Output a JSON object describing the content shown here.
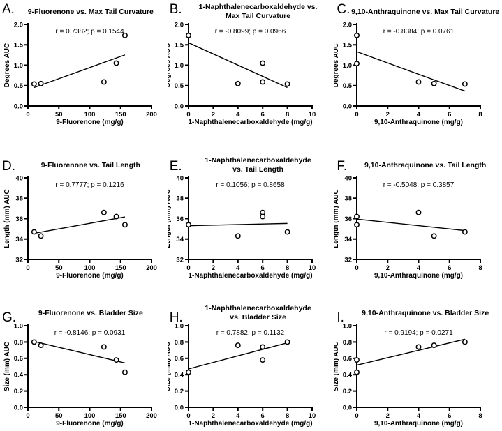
{
  "figure": {
    "background": "#ffffff",
    "ink": "#000000",
    "marker": {
      "shape": "open-circle",
      "fill": "#ffffff",
      "stroke": "#000000"
    },
    "grid_layout": "3x3"
  },
  "chart_data": [
    {
      "type": "scatter",
      "panel_letter": "A.",
      "title": "9-Fluorenone vs. Max Tail Curvature",
      "stats": "r = 0.7382; p = 0.1544",
      "xlabel": "9-Fluorenone (mg/g)",
      "ylabel": "Degrees AUC",
      "xlim": [
        0,
        200
      ],
      "ylim": [
        0,
        2
      ],
      "xticks": [
        {
          "v": 0,
          "label": "0"
        },
        {
          "v": 50,
          "label": "50"
        },
        {
          "v": 100,
          "label": "100"
        },
        {
          "v": 150,
          "label": "150"
        },
        {
          "v": 200,
          "label": "200"
        }
      ],
      "yticks": [
        {
          "v": 0,
          "label": "0.0"
        },
        {
          "v": 0.5,
          "label": "0.5"
        },
        {
          "v": 1,
          "label": "1.0"
        },
        {
          "v": 1.5,
          "label": "1.5"
        },
        {
          "v": 2,
          "label": "2.0"
        }
      ],
      "points": [
        [
          10,
          0.54
        ],
        [
          21,
          0.55
        ],
        [
          123,
          0.59
        ],
        [
          143,
          1.05
        ],
        [
          157,
          1.73
        ]
      ],
      "fit_line": true,
      "legend": "none",
      "gridlines": false
    },
    {
      "type": "scatter",
      "panel_letter": "B.",
      "title": "1-Naphthalenecarboxaldehyde vs.\nMax Tail Curvature",
      "stats": "r = -0.8099; p = 0.0966",
      "xlabel": "1-Naphthalenecarboxaldehyde (mg/g)",
      "ylabel": "Degrees AUC",
      "xlim": [
        0,
        10
      ],
      "ylim": [
        0,
        2
      ],
      "xticks": [
        {
          "v": 0,
          "label": "0"
        },
        {
          "v": 2,
          "label": "2"
        },
        {
          "v": 4,
          "label": "4"
        },
        {
          "v": 6,
          "label": "6"
        },
        {
          "v": 8,
          "label": "8"
        },
        {
          "v": 10,
          "label": "10"
        }
      ],
      "yticks": [
        {
          "v": 0,
          "label": "0.0"
        },
        {
          "v": 0.5,
          "label": "0.5"
        },
        {
          "v": 1,
          "label": "1.0"
        },
        {
          "v": 1.5,
          "label": "1.5"
        },
        {
          "v": 2,
          "label": "2.0"
        }
      ],
      "points": [
        [
          0,
          1.73
        ],
        [
          4,
          0.55
        ],
        [
          6,
          1.05
        ],
        [
          6,
          0.59
        ],
        [
          8,
          0.54
        ]
      ],
      "fit_line": true,
      "legend": "none",
      "gridlines": false
    },
    {
      "type": "scatter",
      "panel_letter": "C.",
      "title": "9,10-Anthraquinone vs. Max Tail Curvature",
      "stats": "r = -0.8384; p = 0.0761",
      "xlabel": "9,10-Anthraquinone (mg/g)",
      "ylabel": "Degrees AUC",
      "xlim": [
        0,
        8
      ],
      "ylim": [
        0,
        2
      ],
      "xticks": [
        {
          "v": 0,
          "label": "0"
        },
        {
          "v": 2,
          "label": "2"
        },
        {
          "v": 4,
          "label": "4"
        },
        {
          "v": 6,
          "label": "6"
        },
        {
          "v": 8,
          "label": "8"
        }
      ],
      "yticks": [
        {
          "v": 0,
          "label": "0.0"
        },
        {
          "v": 0.5,
          "label": "0.5"
        },
        {
          "v": 1,
          "label": "1.0"
        },
        {
          "v": 1.5,
          "label": "1.5"
        },
        {
          "v": 2,
          "label": "2.0"
        }
      ],
      "points": [
        [
          0,
          1.73
        ],
        [
          0,
          1.04
        ],
        [
          4,
          0.59
        ],
        [
          5,
          0.55
        ],
        [
          7,
          0.54
        ]
      ],
      "fit_line": true,
      "legend": "none",
      "gridlines": false
    },
    {
      "type": "scatter",
      "panel_letter": "D.",
      "title": "9-Fluorenone vs. Tail Length",
      "stats": "r = 0.7777; p = 0.1216",
      "xlabel": "9-Fluorenone (mg/g)",
      "ylabel": "Length (mm) AUC",
      "xlim": [
        0,
        200
      ],
      "ylim": [
        32,
        40
      ],
      "xticks": [
        {
          "v": 0,
          "label": "0"
        },
        {
          "v": 50,
          "label": "50"
        },
        {
          "v": 100,
          "label": "100"
        },
        {
          "v": 150,
          "label": "150"
        },
        {
          "v": 200,
          "label": "200"
        }
      ],
      "yticks": [
        {
          "v": 32,
          "label": "32"
        },
        {
          "v": 34,
          "label": "34"
        },
        {
          "v": 36,
          "label": "36"
        },
        {
          "v": 38,
          "label": "38"
        },
        {
          "v": 40,
          "label": "40"
        }
      ],
      "points": [
        [
          10,
          34.7
        ],
        [
          21,
          34.3
        ],
        [
          123,
          36.6
        ],
        [
          143,
          36.2
        ],
        [
          157,
          35.4
        ]
      ],
      "fit_line": true,
      "legend": "none",
      "gridlines": false
    },
    {
      "type": "scatter",
      "panel_letter": "E.",
      "title": "1-Naphthalenecarboxaldehyde\nvs. Tail Length",
      "stats": "r = 0.1056; p = 0.8658",
      "xlabel": "1-Naphthalenecarboxaldehyde (mg/g)",
      "ylabel": "Length (mm) AUC",
      "xlim": [
        0,
        10
      ],
      "ylim": [
        32,
        40
      ],
      "xticks": [
        {
          "v": 0,
          "label": "0"
        },
        {
          "v": 2,
          "label": "2"
        },
        {
          "v": 4,
          "label": "4"
        },
        {
          "v": 6,
          "label": "6"
        },
        {
          "v": 8,
          "label": "8"
        },
        {
          "v": 10,
          "label": "10"
        }
      ],
      "yticks": [
        {
          "v": 32,
          "label": "32"
        },
        {
          "v": 34,
          "label": "34"
        },
        {
          "v": 36,
          "label": "36"
        },
        {
          "v": 38,
          "label": "38"
        },
        {
          "v": 40,
          "label": "40"
        }
      ],
      "points": [
        [
          0,
          35.4
        ],
        [
          4,
          34.3
        ],
        [
          6,
          36.6
        ],
        [
          6,
          36.2
        ],
        [
          8,
          34.7
        ]
      ],
      "fit_line": true,
      "legend": "none",
      "gridlines": false
    },
    {
      "type": "scatter",
      "panel_letter": "F.",
      "title": "9,10-Anthraquinone vs. Tail Length",
      "stats": "r = -0.5048; p = 0.3857",
      "xlabel": "9,10-Anthraquinone (mg/g)",
      "ylabel": "Length (mm) AUC",
      "xlim": [
        0,
        8
      ],
      "ylim": [
        32,
        40
      ],
      "xticks": [
        {
          "v": 0,
          "label": "0"
        },
        {
          "v": 2,
          "label": "2"
        },
        {
          "v": 4,
          "label": "4"
        },
        {
          "v": 6,
          "label": "6"
        },
        {
          "v": 8,
          "label": "8"
        }
      ],
      "yticks": [
        {
          "v": 32,
          "label": "32"
        },
        {
          "v": 34,
          "label": "34"
        },
        {
          "v": 36,
          "label": "36"
        },
        {
          "v": 38,
          "label": "38"
        },
        {
          "v": 40,
          "label": "40"
        }
      ],
      "points": [
        [
          0,
          36.2
        ],
        [
          0,
          35.4
        ],
        [
          4,
          36.6
        ],
        [
          5,
          34.3
        ],
        [
          7,
          34.7
        ]
      ],
      "fit_line": true,
      "legend": "none",
      "gridlines": false
    },
    {
      "type": "scatter",
      "panel_letter": "G.",
      "title": "9-Fluorenone vs. Bladder Size",
      "stats": "r = -0.8146; p = 0.0931",
      "xlabel": "9-Fluorenone (mg/g)",
      "ylabel": "Size (mm) AUC",
      "xlim": [
        0,
        200
      ],
      "ylim": [
        0,
        1
      ],
      "xticks": [
        {
          "v": 0,
          "label": "0"
        },
        {
          "v": 50,
          "label": "50"
        },
        {
          "v": 100,
          "label": "100"
        },
        {
          "v": 150,
          "label": "150"
        },
        {
          "v": 200,
          "label": "200"
        }
      ],
      "yticks": [
        {
          "v": 0,
          "label": "0.0"
        },
        {
          "v": 0.2,
          "label": "0.2"
        },
        {
          "v": 0.4,
          "label": "0.4"
        },
        {
          "v": 0.6,
          "label": "0.6"
        },
        {
          "v": 0.8,
          "label": "0.8"
        },
        {
          "v": 1,
          "label": "1.0"
        }
      ],
      "points": [
        [
          10,
          0.8
        ],
        [
          21,
          0.76
        ],
        [
          123,
          0.74
        ],
        [
          143,
          0.58
        ],
        [
          157,
          0.43
        ]
      ],
      "fit_line": true,
      "legend": "none",
      "gridlines": false
    },
    {
      "type": "scatter",
      "panel_letter": "H.",
      "title": "1-Naphthalenecarboxaldehyde\nvs. Bladder Size",
      "stats": "r = 0.7882; p = 0.1132",
      "xlabel": "1-Naphthalenecarboxaldehyde (mg/g)",
      "ylabel": "Size (mm) AUC",
      "xlim": [
        0,
        10
      ],
      "ylim": [
        0,
        1
      ],
      "xticks": [
        {
          "v": 0,
          "label": "0"
        },
        {
          "v": 2,
          "label": "2"
        },
        {
          "v": 4,
          "label": "4"
        },
        {
          "v": 6,
          "label": "6"
        },
        {
          "v": 8,
          "label": "8"
        },
        {
          "v": 10,
          "label": "10"
        }
      ],
      "yticks": [
        {
          "v": 0,
          "label": "0.0"
        },
        {
          "v": 0.2,
          "label": "0.2"
        },
        {
          "v": 0.4,
          "label": "0.4"
        },
        {
          "v": 0.6,
          "label": "0.6"
        },
        {
          "v": 0.8,
          "label": "0.8"
        },
        {
          "v": 1,
          "label": "1.0"
        }
      ],
      "points": [
        [
          0,
          0.43
        ],
        [
          4,
          0.76
        ],
        [
          6,
          0.74
        ],
        [
          6,
          0.58
        ],
        [
          8,
          0.8
        ]
      ],
      "fit_line": true,
      "legend": "none",
      "gridlines": false
    },
    {
      "type": "scatter",
      "panel_letter": "I.",
      "title": "9,10-Anthraquinone vs. Bladder Size",
      "stats": "r = 0.9194; p = 0.0271",
      "xlabel": "9,10-Anthraquinone (mg/g)",
      "ylabel": "Size (mm) AUC",
      "xlim": [
        0,
        8
      ],
      "ylim": [
        0,
        1
      ],
      "xticks": [
        {
          "v": 0,
          "label": "0"
        },
        {
          "v": 2,
          "label": "2"
        },
        {
          "v": 4,
          "label": "4"
        },
        {
          "v": 6,
          "label": "6"
        },
        {
          "v": 8,
          "label": "8"
        }
      ],
      "yticks": [
        {
          "v": 0,
          "label": "0.0"
        },
        {
          "v": 0.2,
          "label": "0.2"
        },
        {
          "v": 0.4,
          "label": "0.4"
        },
        {
          "v": 0.6,
          "label": "0.6"
        },
        {
          "v": 0.8,
          "label": "0.8"
        },
        {
          "v": 1,
          "label": "1.0"
        }
      ],
      "points": [
        [
          0,
          0.58
        ],
        [
          0,
          0.43
        ],
        [
          4,
          0.74
        ],
        [
          5,
          0.76
        ],
        [
          7,
          0.8
        ]
      ],
      "fit_line": true,
      "legend": "none",
      "gridlines": false
    }
  ]
}
